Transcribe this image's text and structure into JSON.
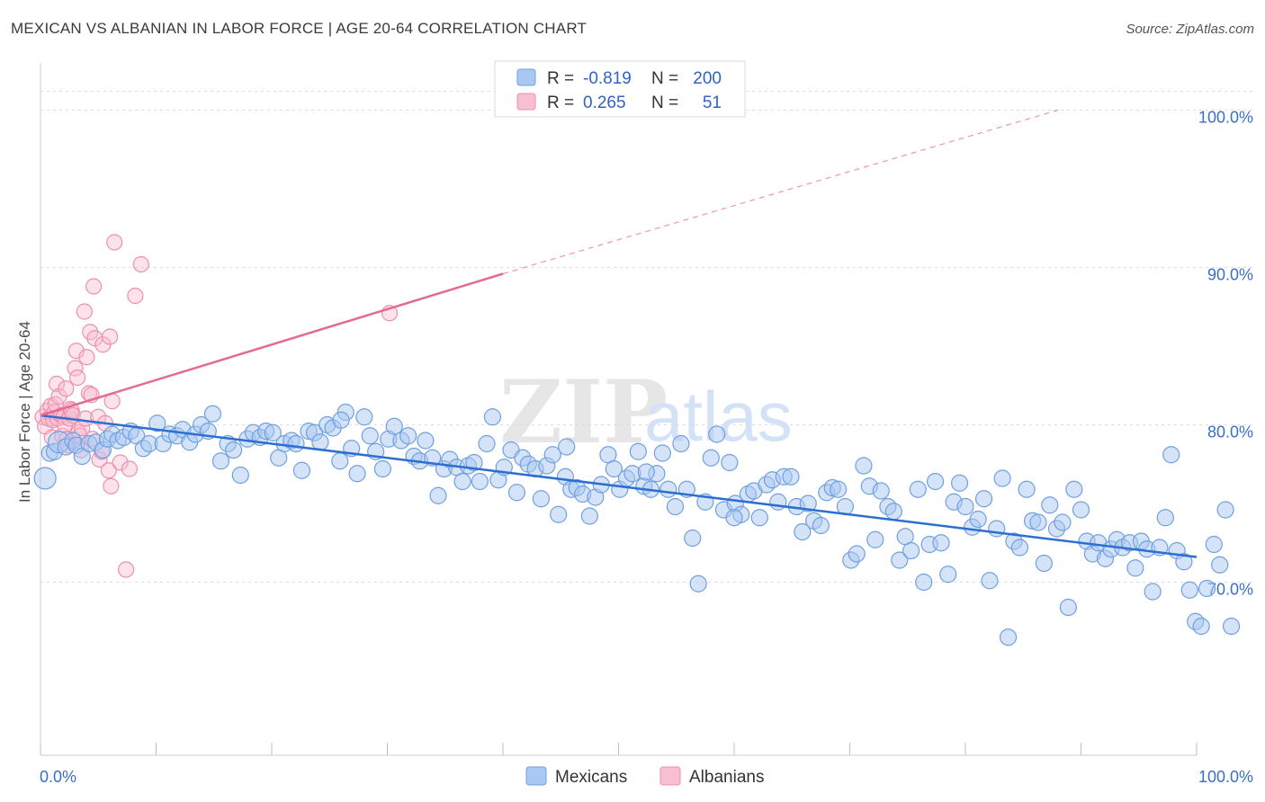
{
  "header": {
    "title": "MEXICAN VS ALBANIAN IN LABOR FORCE | AGE 20-64 CORRELATION CHART",
    "source": "Source: ZipAtlas.com"
  },
  "watermark": {
    "zip": "ZIP",
    "atlas": "atlas"
  },
  "legend_top": {
    "rows": [
      {
        "r_label": "R =",
        "r_value": "-0.819",
        "n_label": "N =",
        "n_value": "200"
      },
      {
        "r_label": "R =",
        "r_value": "0.265",
        "n_label": "N =",
        "n_value": "51"
      }
    ]
  },
  "legend_bottom": {
    "items": [
      "Mexicans",
      "Albanians"
    ]
  },
  "colors": {
    "blue_fill": "#a9c8f2",
    "blue_stroke": "#6f9fe0",
    "blue_line": "#2c6fd0",
    "pink_fill": "#f8bfd0",
    "pink_stroke": "#ee8fae",
    "pink_line": "#e46a93",
    "tick_text": "#3a6fc8",
    "grid": "#dddddd"
  },
  "chart_data": {
    "type": "scatter",
    "title": "MEXICAN VS ALBANIAN IN LABOR FORCE | AGE 20-64 CORRELATION CHART",
    "xlabel": "",
    "ylabel": "In Labor Force | Age 20-64",
    "xlim": [
      0,
      100
    ],
    "ylim": [
      59.0,
      103.0
    ],
    "x_tick_labels": [
      "0.0%",
      "100.0%"
    ],
    "y_ticks": [
      70,
      80,
      90,
      100
    ],
    "y_tick_labels": [
      "70.0%",
      "80.0%",
      "90.0%",
      "100.0%"
    ],
    "grid": true,
    "legend_position": "top-center",
    "series": [
      {
        "name": "Mexicans",
        "r": -0.819,
        "n": 200,
        "trend": {
          "x": [
            0,
            100
          ],
          "y": [
            80.6,
            71.6
          ],
          "dashed_after": null
        },
        "points": [
          [
            0.4,
            76.6
          ],
          [
            0.8,
            78.2
          ],
          [
            1.2,
            78.3
          ],
          [
            1.6,
            78.9
          ],
          [
            2.2,
            78.6
          ],
          [
            2.8,
            79.0
          ],
          [
            3.1,
            78.7
          ],
          [
            3.6,
            78.0
          ],
          [
            4.2,
            78.8
          ],
          [
            4.8,
            78.9
          ],
          [
            5.4,
            78.4
          ],
          [
            5.8,
            79.1
          ],
          [
            6.2,
            79.4
          ],
          [
            6.7,
            79.0
          ],
          [
            7.2,
            79.2
          ],
          [
            7.8,
            79.6
          ],
          [
            8.3,
            79.3
          ],
          [
            8.9,
            78.5
          ],
          [
            9.4,
            78.8
          ],
          [
            10.1,
            80.1
          ],
          [
            10.6,
            78.8
          ],
          [
            11.2,
            79.4
          ],
          [
            11.8,
            79.3
          ],
          [
            12.3,
            79.7
          ],
          [
            12.9,
            78.9
          ],
          [
            13.4,
            79.4
          ],
          [
            13.9,
            80.0
          ],
          [
            14.5,
            79.6
          ],
          [
            14.9,
            80.7
          ],
          [
            15.6,
            77.7
          ],
          [
            16.2,
            78.8
          ],
          [
            16.7,
            78.4
          ],
          [
            17.3,
            76.8
          ],
          [
            17.9,
            79.1
          ],
          [
            18.4,
            79.5
          ],
          [
            19.0,
            79.2
          ],
          [
            19.5,
            79.6
          ],
          [
            20.1,
            79.5
          ],
          [
            20.6,
            77.9
          ],
          [
            21.1,
            78.8
          ],
          [
            21.7,
            79.0
          ],
          [
            22.1,
            78.8
          ],
          [
            22.6,
            77.1
          ],
          [
            23.2,
            79.6
          ],
          [
            23.7,
            79.5
          ],
          [
            24.2,
            78.9
          ],
          [
            24.8,
            80.0
          ],
          [
            25.3,
            79.8
          ],
          [
            25.9,
            77.7
          ],
          [
            26.4,
            80.8
          ],
          [
            26.9,
            78.5
          ],
          [
            27.4,
            76.9
          ],
          [
            28.0,
            80.5
          ],
          [
            28.5,
            79.3
          ],
          [
            29.0,
            78.3
          ],
          [
            29.6,
            77.2
          ],
          [
            30.1,
            79.1
          ],
          [
            30.6,
            79.9
          ],
          [
            31.2,
            79.0
          ],
          [
            31.8,
            79.3
          ],
          [
            32.3,
            78.0
          ],
          [
            32.8,
            77.7
          ],
          [
            33.3,
            79.0
          ],
          [
            33.9,
            77.9
          ],
          [
            34.4,
            75.5
          ],
          [
            34.9,
            77.2
          ],
          [
            35.4,
            77.8
          ],
          [
            36.0,
            77.3
          ],
          [
            36.5,
            76.4
          ],
          [
            37.0,
            77.4
          ],
          [
            37.5,
            77.6
          ],
          [
            38.0,
            76.4
          ],
          [
            38.6,
            78.8
          ],
          [
            39.1,
            80.5
          ],
          [
            39.6,
            76.5
          ],
          [
            40.1,
            77.3
          ],
          [
            40.7,
            78.4
          ],
          [
            41.2,
            75.7
          ],
          [
            41.7,
            77.9
          ],
          [
            42.2,
            77.5
          ],
          [
            42.8,
            77.2
          ],
          [
            43.3,
            75.3
          ],
          [
            43.8,
            77.4
          ],
          [
            44.3,
            78.1
          ],
          [
            44.8,
            74.3
          ],
          [
            45.4,
            76.7
          ],
          [
            45.9,
            75.9
          ],
          [
            46.4,
            76.0
          ],
          [
            46.9,
            75.6
          ],
          [
            47.5,
            74.2
          ],
          [
            48.0,
            75.4
          ],
          [
            48.5,
            76.2
          ],
          [
            49.1,
            78.1
          ],
          [
            49.6,
            77.2
          ],
          [
            50.1,
            75.9
          ],
          [
            50.7,
            76.6
          ],
          [
            51.2,
            76.9
          ],
          [
            51.7,
            78.3
          ],
          [
            52.2,
            76.1
          ],
          [
            52.8,
            75.9
          ],
          [
            53.3,
            76.9
          ],
          [
            53.8,
            78.2
          ],
          [
            54.3,
            75.9
          ],
          [
            54.9,
            74.8
          ],
          [
            55.4,
            78.8
          ],
          [
            55.9,
            75.9
          ],
          [
            56.4,
            72.8
          ],
          [
            56.9,
            69.9
          ],
          [
            57.5,
            75.1
          ],
          [
            58.0,
            77.9
          ],
          [
            58.5,
            79.4
          ],
          [
            59.1,
            74.6
          ],
          [
            59.6,
            77.6
          ],
          [
            60.1,
            75.0
          ],
          [
            60.6,
            74.3
          ],
          [
            61.2,
            75.6
          ],
          [
            61.7,
            75.8
          ],
          [
            62.2,
            74.1
          ],
          [
            62.8,
            76.2
          ],
          [
            63.3,
            76.5
          ],
          [
            63.8,
            75.1
          ],
          [
            64.3,
            76.7
          ],
          [
            64.9,
            76.7
          ],
          [
            65.4,
            74.8
          ],
          [
            65.9,
            73.2
          ],
          [
            66.4,
            75.0
          ],
          [
            66.9,
            73.9
          ],
          [
            67.5,
            73.6
          ],
          [
            68.0,
            75.7
          ],
          [
            68.5,
            76.0
          ],
          [
            69.0,
            75.9
          ],
          [
            69.6,
            74.8
          ],
          [
            70.1,
            71.4
          ],
          [
            70.6,
            71.8
          ],
          [
            71.2,
            77.4
          ],
          [
            71.7,
            76.1
          ],
          [
            72.2,
            72.7
          ],
          [
            72.7,
            75.8
          ],
          [
            73.3,
            74.8
          ],
          [
            73.8,
            74.5
          ],
          [
            74.3,
            71.4
          ],
          [
            74.8,
            72.9
          ],
          [
            75.3,
            72.0
          ],
          [
            75.9,
            75.9
          ],
          [
            76.4,
            70.0
          ],
          [
            76.9,
            72.4
          ],
          [
            77.4,
            76.4
          ],
          [
            77.9,
            72.5
          ],
          [
            78.5,
            70.5
          ],
          [
            79.0,
            75.1
          ],
          [
            79.5,
            76.3
          ],
          [
            80.0,
            74.8
          ],
          [
            80.6,
            73.5
          ],
          [
            81.1,
            74.0
          ],
          [
            81.6,
            75.3
          ],
          [
            82.1,
            70.1
          ],
          [
            82.7,
            73.4
          ],
          [
            83.2,
            76.6
          ],
          [
            83.7,
            66.5
          ],
          [
            84.2,
            72.6
          ],
          [
            84.7,
            72.2
          ],
          [
            85.3,
            75.9
          ],
          [
            85.8,
            73.9
          ],
          [
            86.3,
            73.8
          ],
          [
            86.8,
            71.2
          ],
          [
            87.3,
            74.9
          ],
          [
            87.9,
            73.4
          ],
          [
            88.4,
            73.8
          ],
          [
            88.9,
            68.4
          ],
          [
            89.4,
            75.9
          ],
          [
            90.0,
            74.6
          ],
          [
            90.5,
            72.6
          ],
          [
            91.0,
            71.8
          ],
          [
            91.5,
            72.5
          ],
          [
            92.1,
            71.5
          ],
          [
            92.6,
            72.1
          ],
          [
            93.1,
            72.7
          ],
          [
            93.6,
            72.2
          ],
          [
            94.2,
            72.5
          ],
          [
            94.7,
            70.9
          ],
          [
            95.2,
            72.6
          ],
          [
            95.7,
            72.1
          ],
          [
            96.2,
            69.4
          ],
          [
            96.8,
            72.2
          ],
          [
            97.3,
            74.1
          ],
          [
            97.8,
            78.1
          ],
          [
            98.3,
            72.0
          ],
          [
            98.9,
            71.3
          ],
          [
            99.4,
            69.5
          ],
          [
            99.9,
            67.5
          ],
          [
            100.4,
            67.2
          ],
          [
            100.9,
            69.6
          ],
          [
            101.5,
            72.4
          ],
          [
            102.0,
            71.1
          ],
          [
            102.5,
            74.6
          ],
          [
            103.0,
            67.2
          ],
          [
            26.0,
            80.3
          ],
          [
            45.5,
            78.6
          ],
          [
            52.4,
            77.0
          ],
          [
            60.0,
            74.1
          ]
        ]
      },
      {
        "name": "Albanians",
        "r": 0.265,
        "n": 51,
        "trend": {
          "x": [
            0,
            40
          ],
          "y": [
            80.6,
            89.6
          ],
          "dashed_after": 40,
          "dashed_to": [
            88,
            100.0
          ]
        },
        "points": [
          [
            0.2,
            80.5
          ],
          [
            0.4,
            79.9
          ],
          [
            0.6,
            80.9
          ],
          [
            0.7,
            80.4
          ],
          [
            0.9,
            81.2
          ],
          [
            1.0,
            79.2
          ],
          [
            1.1,
            80.3
          ],
          [
            1.2,
            80.8
          ],
          [
            1.3,
            81.3
          ],
          [
            1.4,
            82.6
          ],
          [
            1.5,
            80.4
          ],
          [
            1.6,
            81.8
          ],
          [
            1.8,
            80.6
          ],
          [
            1.9,
            79.3
          ],
          [
            2.0,
            80.5
          ],
          [
            2.1,
            80.0
          ],
          [
            2.2,
            82.3
          ],
          [
            2.3,
            79.1
          ],
          [
            2.4,
            78.7
          ],
          [
            2.5,
            80.4
          ],
          [
            2.6,
            81.0
          ],
          [
            2.7,
            80.9
          ],
          [
            2.8,
            80.6
          ],
          [
            3.0,
            83.6
          ],
          [
            3.1,
            84.7
          ],
          [
            3.2,
            83.0
          ],
          [
            3.3,
            79.5
          ],
          [
            3.4,
            79.3
          ],
          [
            3.5,
            78.4
          ],
          [
            3.6,
            79.8
          ],
          [
            3.8,
            87.2
          ],
          [
            3.9,
            80.4
          ],
          [
            4.0,
            84.3
          ],
          [
            4.2,
            82.0
          ],
          [
            4.3,
            85.9
          ],
          [
            4.4,
            81.9
          ],
          [
            4.5,
            79.1
          ],
          [
            4.6,
            88.8
          ],
          [
            4.7,
            85.5
          ],
          [
            5.0,
            80.5
          ],
          [
            5.1,
            77.8
          ],
          [
            5.3,
            78.3
          ],
          [
            5.4,
            85.1
          ],
          [
            5.6,
            80.1
          ],
          [
            5.9,
            77.1
          ],
          [
            6.2,
            81.5
          ],
          [
            6.4,
            91.6
          ],
          [
            6.9,
            77.6
          ],
          [
            7.4,
            70.8
          ],
          [
            8.2,
            88.2
          ],
          [
            8.7,
            90.2
          ],
          [
            30.2,
            87.1
          ],
          [
            6.0,
            85.6
          ],
          [
            6.1,
            76.1
          ],
          [
            7.7,
            77.2
          ]
        ]
      }
    ]
  }
}
